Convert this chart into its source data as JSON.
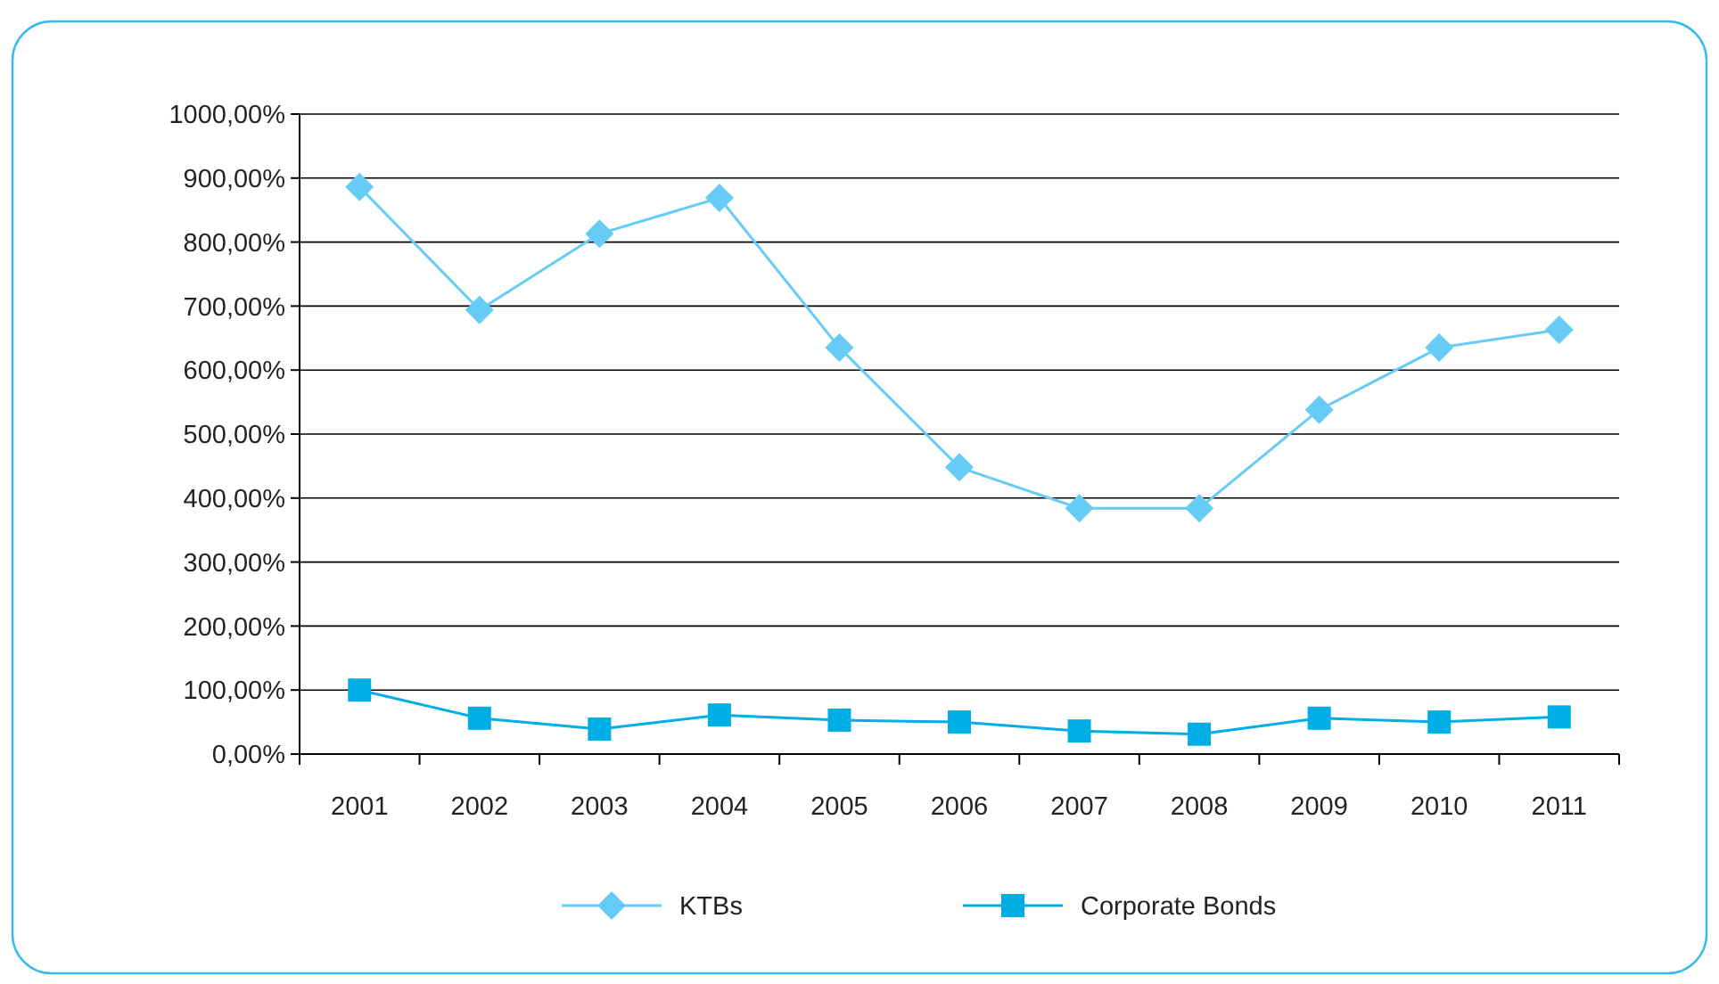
{
  "chart_data": {
    "type": "line",
    "categories": [
      "2001",
      "2002",
      "2003",
      "2004",
      "2005",
      "2006",
      "2007",
      "2008",
      "2009",
      "2010",
      "2011"
    ],
    "series": [
      {
        "name": "KTBs",
        "color": "#66ccf5",
        "marker": "diamond",
        "values": [
          886,
          694,
          813,
          869,
          635,
          448,
          384,
          384,
          538,
          635,
          663
        ]
      },
      {
        "name": "Corporate Bonds",
        "color": "#00aee6",
        "marker": "square",
        "values": [
          100,
          56,
          39,
          61,
          53,
          50,
          36,
          31,
          56,
          50,
          58
        ]
      }
    ],
    "ylim": [
      0,
      1000
    ],
    "yticks": [
      {
        "value": 0,
        "label": "0,00%"
      },
      {
        "value": 100,
        "label": "100,00%"
      },
      {
        "value": 200,
        "label": "200,00%"
      },
      {
        "value": 300,
        "label": "300,00%"
      },
      {
        "value": 400,
        "label": "400,00%"
      },
      {
        "value": 500,
        "label": "500,00%"
      },
      {
        "value": 600,
        "label": "600,00%"
      },
      {
        "value": 700,
        "label": "700,00%"
      },
      {
        "value": 800,
        "label": "800,00%"
      },
      {
        "value": 900,
        "label": "900,00%"
      },
      {
        "value": 1000,
        "label": "1000,00%"
      }
    ],
    "grid": "y",
    "legend": "bottom"
  }
}
